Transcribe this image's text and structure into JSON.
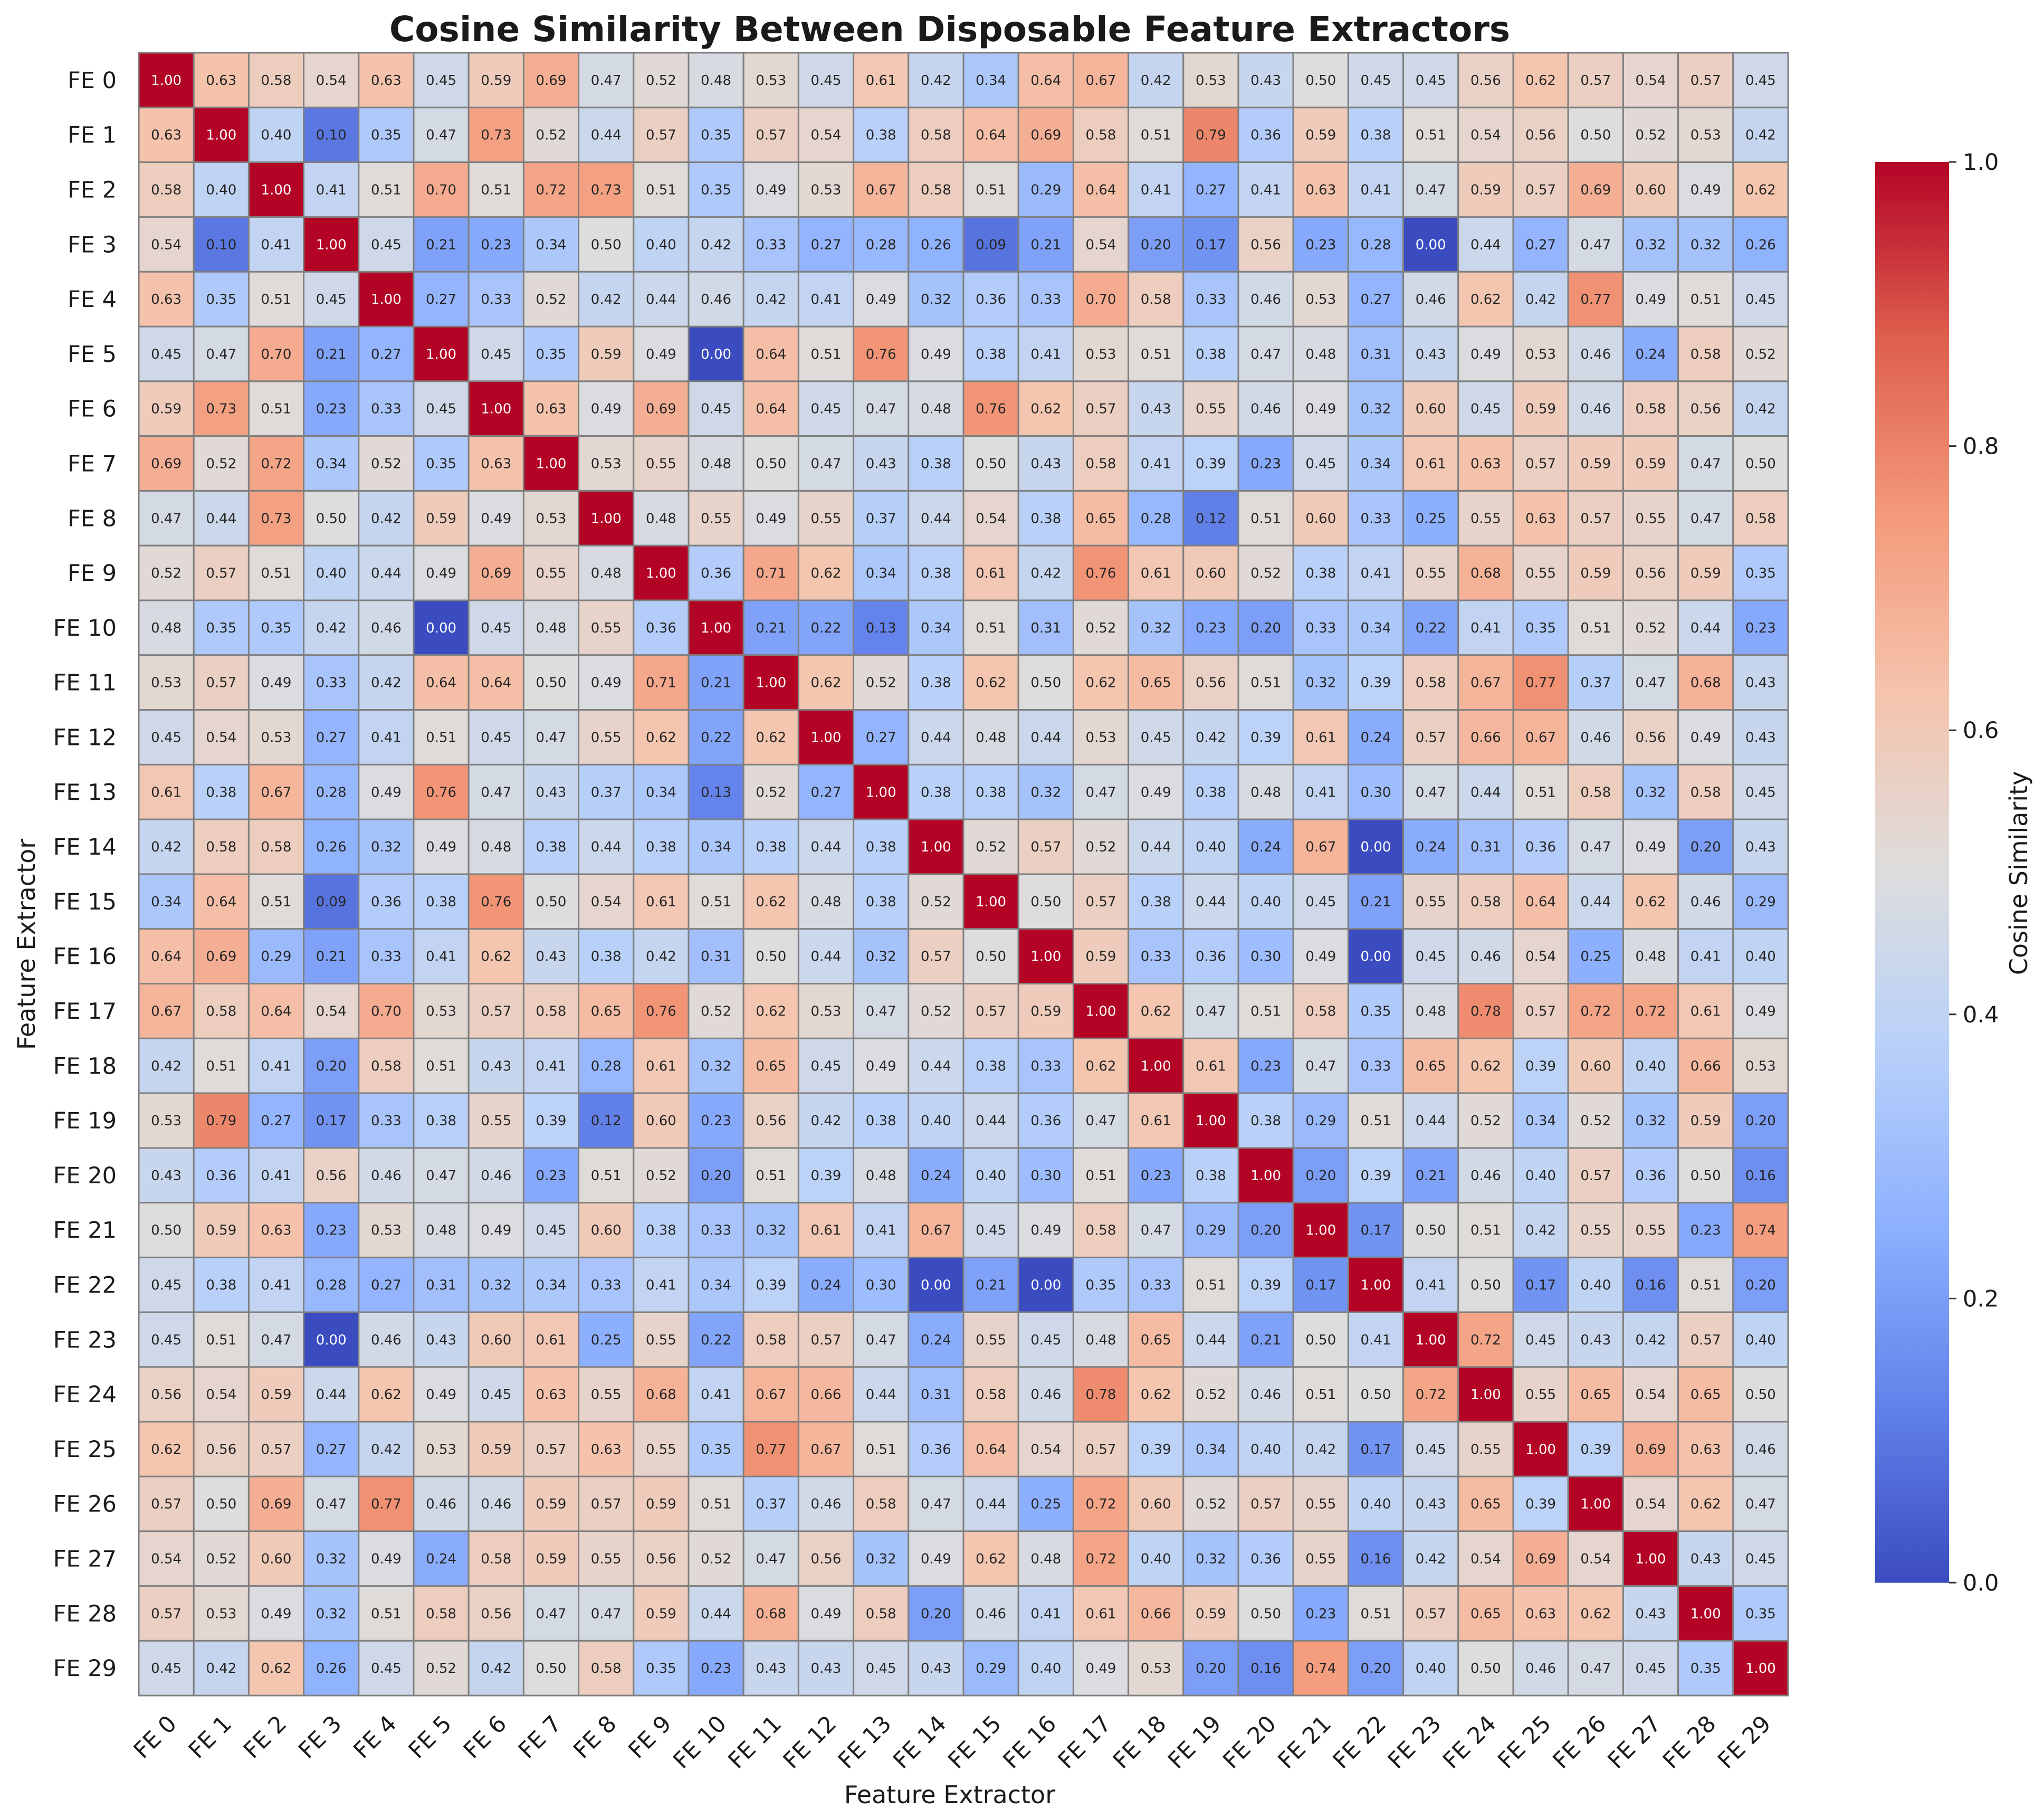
{
  "chart_data": {
    "type": "heatmap",
    "title": "Cosine Similarity Between Disposable Feature Extractors",
    "xlabel": "Feature Extractor",
    "ylabel": "Feature Extractor",
    "colorbar_label": "Cosine Similarity",
    "colormap": "coolwarm",
    "vmin": 0.0,
    "vmax": 1.0,
    "colorbar_ticks": [
      "0.0",
      "0.2",
      "0.4",
      "0.6",
      "0.8",
      "1.0"
    ],
    "annotation_format": "0.00",
    "labels": [
      "FE 0",
      "FE 1",
      "FE 2",
      "FE 3",
      "FE 4",
      "FE 5",
      "FE 6",
      "FE 7",
      "FE 8",
      "FE 9",
      "FE 10",
      "FE 11",
      "FE 12",
      "FE 13",
      "FE 14",
      "FE 15",
      "FE 16",
      "FE 17",
      "FE 18",
      "FE 19",
      "FE 20",
      "FE 21",
      "FE 22",
      "FE 23",
      "FE 24",
      "FE 25",
      "FE 26",
      "FE 27",
      "FE 28",
      "FE 29"
    ],
    "matrix": [
      [
        1.0,
        0.63,
        0.58,
        0.54,
        0.63,
        0.45,
        0.59,
        0.69,
        0.47,
        0.52,
        0.48,
        0.53,
        0.45,
        0.61,
        0.42,
        0.34,
        0.64,
        0.67,
        0.42,
        0.53,
        0.43,
        0.5,
        0.45,
        0.45,
        0.56,
        0.62,
        0.57,
        0.54,
        0.57,
        0.45
      ],
      [
        0.63,
        1.0,
        0.4,
        0.1,
        0.35,
        0.47,
        0.73,
        0.52,
        0.44,
        0.57,
        0.35,
        0.57,
        0.54,
        0.38,
        0.58,
        0.64,
        0.69,
        0.58,
        0.51,
        0.79,
        0.36,
        0.59,
        0.38,
        0.51,
        0.54,
        0.56,
        0.5,
        0.52,
        0.53,
        0.42
      ],
      [
        0.58,
        0.4,
        1.0,
        0.41,
        0.51,
        0.7,
        0.51,
        0.72,
        0.73,
        0.51,
        0.35,
        0.49,
        0.53,
        0.67,
        0.58,
        0.51,
        0.29,
        0.64,
        0.41,
        0.27,
        0.41,
        0.63,
        0.41,
        0.47,
        0.59,
        0.57,
        0.69,
        0.6,
        0.49,
        0.62
      ],
      [
        0.54,
        0.1,
        0.41,
        1.0,
        0.45,
        0.21,
        0.23,
        0.34,
        0.5,
        0.4,
        0.42,
        0.33,
        0.27,
        0.28,
        0.26,
        0.09,
        0.21,
        0.54,
        0.2,
        0.17,
        0.56,
        0.23,
        0.28,
        0.0,
        0.44,
        0.27,
        0.47,
        0.32,
        0.32,
        0.26
      ],
      [
        0.63,
        0.35,
        0.51,
        0.45,
        1.0,
        0.27,
        0.33,
        0.52,
        0.42,
        0.44,
        0.46,
        0.42,
        0.41,
        0.49,
        0.32,
        0.36,
        0.33,
        0.7,
        0.58,
        0.33,
        0.46,
        0.53,
        0.27,
        0.46,
        0.62,
        0.42,
        0.77,
        0.49,
        0.51,
        0.45
      ],
      [
        0.45,
        0.47,
        0.7,
        0.21,
        0.27,
        1.0,
        0.45,
        0.35,
        0.59,
        0.49,
        0.0,
        0.64,
        0.51,
        0.76,
        0.49,
        0.38,
        0.41,
        0.53,
        0.51,
        0.38,
        0.47,
        0.48,
        0.31,
        0.43,
        0.49,
        0.53,
        0.46,
        0.24,
        0.58,
        0.52
      ],
      [
        0.59,
        0.73,
        0.51,
        0.23,
        0.33,
        0.45,
        1.0,
        0.63,
        0.49,
        0.69,
        0.45,
        0.64,
        0.45,
        0.47,
        0.48,
        0.76,
        0.62,
        0.57,
        0.43,
        0.55,
        0.46,
        0.49,
        0.32,
        0.6,
        0.45,
        0.59,
        0.46,
        0.58,
        0.56,
        0.42
      ],
      [
        0.69,
        0.52,
        0.72,
        0.34,
        0.52,
        0.35,
        0.63,
        1.0,
        0.53,
        0.55,
        0.48,
        0.5,
        0.47,
        0.43,
        0.38,
        0.5,
        0.43,
        0.58,
        0.41,
        0.39,
        0.23,
        0.45,
        0.34,
        0.61,
        0.63,
        0.57,
        0.59,
        0.59,
        0.47,
        0.5
      ],
      [
        0.47,
        0.44,
        0.73,
        0.5,
        0.42,
        0.59,
        0.49,
        0.53,
        1.0,
        0.48,
        0.55,
        0.49,
        0.55,
        0.37,
        0.44,
        0.54,
        0.38,
        0.65,
        0.28,
        0.12,
        0.51,
        0.6,
        0.33,
        0.25,
        0.55,
        0.63,
        0.57,
        0.55,
        0.47,
        0.58
      ],
      [
        0.52,
        0.57,
        0.51,
        0.4,
        0.44,
        0.49,
        0.69,
        0.55,
        0.48,
        1.0,
        0.36,
        0.71,
        0.62,
        0.34,
        0.38,
        0.61,
        0.42,
        0.76,
        0.61,
        0.6,
        0.52,
        0.38,
        0.41,
        0.55,
        0.68,
        0.55,
        0.59,
        0.56,
        0.59,
        0.35
      ],
      [
        0.48,
        0.35,
        0.35,
        0.42,
        0.46,
        0.0,
        0.45,
        0.48,
        0.55,
        0.36,
        1.0,
        0.21,
        0.22,
        0.13,
        0.34,
        0.51,
        0.31,
        0.52,
        0.32,
        0.23,
        0.2,
        0.33,
        0.34,
        0.22,
        0.41,
        0.35,
        0.51,
        0.52,
        0.44,
        0.23
      ],
      [
        0.53,
        0.57,
        0.49,
        0.33,
        0.42,
        0.64,
        0.64,
        0.5,
        0.49,
        0.71,
        0.21,
        1.0,
        0.62,
        0.52,
        0.38,
        0.62,
        0.5,
        0.62,
        0.65,
        0.56,
        0.51,
        0.32,
        0.39,
        0.58,
        0.67,
        0.77,
        0.37,
        0.47,
        0.68,
        0.43
      ],
      [
        0.45,
        0.54,
        0.53,
        0.27,
        0.41,
        0.51,
        0.45,
        0.47,
        0.55,
        0.62,
        0.22,
        0.62,
        1.0,
        0.27,
        0.44,
        0.48,
        0.44,
        0.53,
        0.45,
        0.42,
        0.39,
        0.61,
        0.24,
        0.57,
        0.66,
        0.67,
        0.46,
        0.56,
        0.49,
        0.43
      ],
      [
        0.61,
        0.38,
        0.67,
        0.28,
        0.49,
        0.76,
        0.47,
        0.43,
        0.37,
        0.34,
        0.13,
        0.52,
        0.27,
        1.0,
        0.38,
        0.38,
        0.32,
        0.47,
        0.49,
        0.38,
        0.48,
        0.41,
        0.3,
        0.47,
        0.44,
        0.51,
        0.58,
        0.32,
        0.58,
        0.45
      ],
      [
        0.42,
        0.58,
        0.58,
        0.26,
        0.32,
        0.49,
        0.48,
        0.38,
        0.44,
        0.38,
        0.34,
        0.38,
        0.44,
        0.38,
        1.0,
        0.52,
        0.57,
        0.52,
        0.44,
        0.4,
        0.24,
        0.67,
        0.0,
        0.24,
        0.31,
        0.36,
        0.47,
        0.49,
        0.2,
        0.43
      ],
      [
        0.34,
        0.64,
        0.51,
        0.09,
        0.36,
        0.38,
        0.76,
        0.5,
        0.54,
        0.61,
        0.51,
        0.62,
        0.48,
        0.38,
        0.52,
        1.0,
        0.5,
        0.57,
        0.38,
        0.44,
        0.4,
        0.45,
        0.21,
        0.55,
        0.58,
        0.64,
        0.44,
        0.62,
        0.46,
        0.29
      ],
      [
        0.64,
        0.69,
        0.29,
        0.21,
        0.33,
        0.41,
        0.62,
        0.43,
        0.38,
        0.42,
        0.31,
        0.5,
        0.44,
        0.32,
        0.57,
        0.5,
        1.0,
        0.59,
        0.33,
        0.36,
        0.3,
        0.49,
        0.0,
        0.45,
        0.46,
        0.54,
        0.25,
        0.48,
        0.41,
        0.4
      ],
      [
        0.67,
        0.58,
        0.64,
        0.54,
        0.7,
        0.53,
        0.57,
        0.58,
        0.65,
        0.76,
        0.52,
        0.62,
        0.53,
        0.47,
        0.52,
        0.57,
        0.59,
        1.0,
        0.62,
        0.47,
        0.51,
        0.58,
        0.35,
        0.48,
        0.78,
        0.57,
        0.72,
        0.72,
        0.61,
        0.49
      ],
      [
        0.42,
        0.51,
        0.41,
        0.2,
        0.58,
        0.51,
        0.43,
        0.41,
        0.28,
        0.61,
        0.32,
        0.65,
        0.45,
        0.49,
        0.44,
        0.38,
        0.33,
        0.62,
        1.0,
        0.61,
        0.23,
        0.47,
        0.33,
        0.65,
        0.62,
        0.39,
        0.6,
        0.4,
        0.66,
        0.53
      ],
      [
        0.53,
        0.79,
        0.27,
        0.17,
        0.33,
        0.38,
        0.55,
        0.39,
        0.12,
        0.6,
        0.23,
        0.56,
        0.42,
        0.38,
        0.4,
        0.44,
        0.36,
        0.47,
        0.61,
        1.0,
        0.38,
        0.29,
        0.51,
        0.44,
        0.52,
        0.34,
        0.52,
        0.32,
        0.59,
        0.2
      ],
      [
        0.43,
        0.36,
        0.41,
        0.56,
        0.46,
        0.47,
        0.46,
        0.23,
        0.51,
        0.52,
        0.2,
        0.51,
        0.39,
        0.48,
        0.24,
        0.4,
        0.3,
        0.51,
        0.23,
        0.38,
        1.0,
        0.2,
        0.39,
        0.21,
        0.46,
        0.4,
        0.57,
        0.36,
        0.5,
        0.16
      ],
      [
        0.5,
        0.59,
        0.63,
        0.23,
        0.53,
        0.48,
        0.49,
        0.45,
        0.6,
        0.38,
        0.33,
        0.32,
        0.61,
        0.41,
        0.67,
        0.45,
        0.49,
        0.58,
        0.47,
        0.29,
        0.2,
        1.0,
        0.17,
        0.5,
        0.51,
        0.42,
        0.55,
        0.55,
        0.23,
        0.74
      ],
      [
        0.45,
        0.38,
        0.41,
        0.28,
        0.27,
        0.31,
        0.32,
        0.34,
        0.33,
        0.41,
        0.34,
        0.39,
        0.24,
        0.3,
        0.0,
        0.21,
        0.0,
        0.35,
        0.33,
        0.51,
        0.39,
        0.17,
        1.0,
        0.41,
        0.5,
        0.17,
        0.4,
        0.16,
        0.51,
        0.2
      ],
      [
        0.45,
        0.51,
        0.47,
        0.0,
        0.46,
        0.43,
        0.6,
        0.61,
        0.25,
        0.55,
        0.22,
        0.58,
        0.57,
        0.47,
        0.24,
        0.55,
        0.45,
        0.48,
        0.65,
        0.44,
        0.21,
        0.5,
        0.41,
        1.0,
        0.72,
        0.45,
        0.43,
        0.42,
        0.57,
        0.4
      ],
      [
        0.56,
        0.54,
        0.59,
        0.44,
        0.62,
        0.49,
        0.45,
        0.63,
        0.55,
        0.68,
        0.41,
        0.67,
        0.66,
        0.44,
        0.31,
        0.58,
        0.46,
        0.78,
        0.62,
        0.52,
        0.46,
        0.51,
        0.5,
        0.72,
        1.0,
        0.55,
        0.65,
        0.54,
        0.65,
        0.5
      ],
      [
        0.62,
        0.56,
        0.57,
        0.27,
        0.42,
        0.53,
        0.59,
        0.57,
        0.63,
        0.55,
        0.35,
        0.77,
        0.67,
        0.51,
        0.36,
        0.64,
        0.54,
        0.57,
        0.39,
        0.34,
        0.4,
        0.42,
        0.17,
        0.45,
        0.55,
        1.0,
        0.39,
        0.69,
        0.63,
        0.46
      ],
      [
        0.57,
        0.5,
        0.69,
        0.47,
        0.77,
        0.46,
        0.46,
        0.59,
        0.57,
        0.59,
        0.51,
        0.37,
        0.46,
        0.58,
        0.47,
        0.44,
        0.25,
        0.72,
        0.6,
        0.52,
        0.57,
        0.55,
        0.4,
        0.43,
        0.65,
        0.39,
        1.0,
        0.54,
        0.62,
        0.47
      ],
      [
        0.54,
        0.52,
        0.6,
        0.32,
        0.49,
        0.24,
        0.58,
        0.59,
        0.55,
        0.56,
        0.52,
        0.47,
        0.56,
        0.32,
        0.49,
        0.62,
        0.48,
        0.72,
        0.4,
        0.32,
        0.36,
        0.55,
        0.16,
        0.42,
        0.54,
        0.69,
        0.54,
        1.0,
        0.43,
        0.45
      ],
      [
        0.57,
        0.53,
        0.49,
        0.32,
        0.51,
        0.58,
        0.56,
        0.47,
        0.47,
        0.59,
        0.44,
        0.68,
        0.49,
        0.58,
        0.2,
        0.46,
        0.41,
        0.61,
        0.66,
        0.59,
        0.5,
        0.23,
        0.51,
        0.57,
        0.65,
        0.63,
        0.62,
        0.43,
        1.0,
        0.35
      ],
      [
        0.45,
        0.42,
        0.62,
        0.26,
        0.45,
        0.52,
        0.42,
        0.5,
        0.58,
        0.35,
        0.23,
        0.43,
        0.43,
        0.45,
        0.43,
        0.29,
        0.4,
        0.49,
        0.53,
        0.2,
        0.16,
        0.74,
        0.2,
        0.4,
        0.5,
        0.46,
        0.47,
        0.45,
        0.35,
        1.0
      ]
    ]
  }
}
